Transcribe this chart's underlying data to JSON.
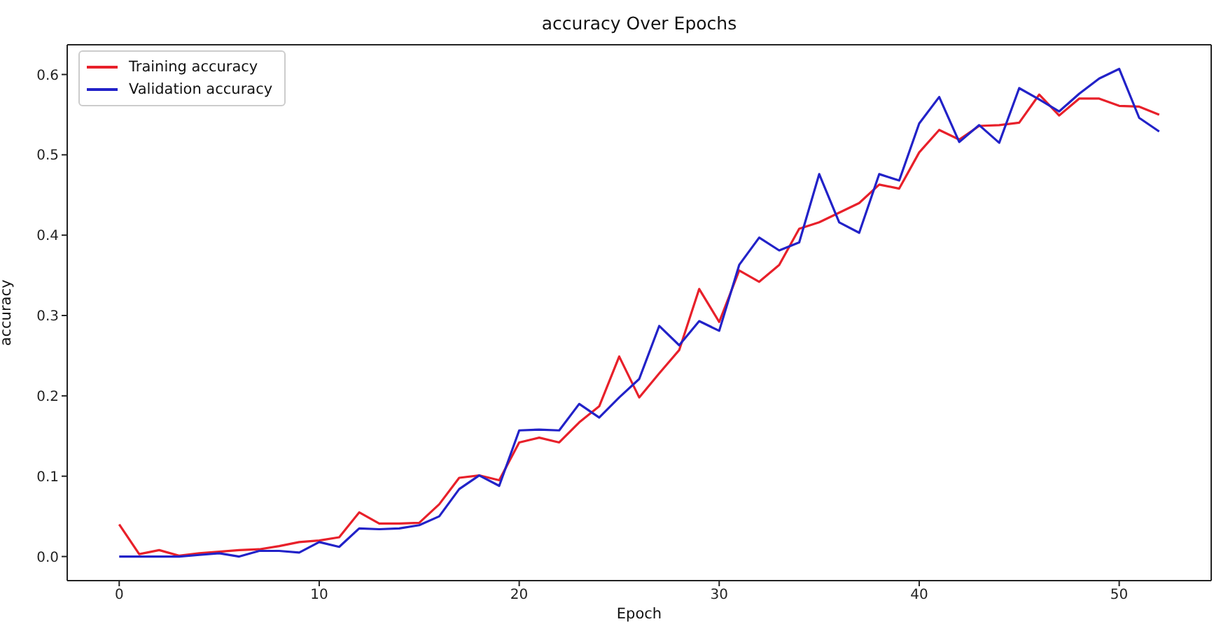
{
  "chart_data": {
    "type": "line",
    "title": "accuracy Over Epochs",
    "xlabel": "Epoch",
    "ylabel": "accuracy",
    "x": [
      0,
      1,
      2,
      3,
      4,
      5,
      6,
      7,
      8,
      9,
      10,
      11,
      12,
      13,
      14,
      15,
      16,
      17,
      18,
      19,
      20,
      21,
      22,
      23,
      24,
      25,
      26,
      27,
      28,
      29,
      30,
      31,
      32,
      33,
      34,
      35,
      36,
      37,
      38,
      39,
      40,
      41,
      42,
      43,
      44,
      45,
      46,
      47,
      48,
      49,
      50,
      51,
      52
    ],
    "series": [
      {
        "name": "Training accuracy",
        "color": "#e8202a",
        "values": [
          0.04,
          0.003,
          0.008,
          0.001,
          0.004,
          0.006,
          0.008,
          0.009,
          0.013,
          0.018,
          0.02,
          0.024,
          0.055,
          0.041,
          0.041,
          0.042,
          0.065,
          0.098,
          0.101,
          0.095,
          0.142,
          0.148,
          0.142,
          0.167,
          0.187,
          0.249,
          0.198,
          0.228,
          0.257,
          0.333,
          0.292,
          0.356,
          0.342,
          0.363,
          0.408,
          0.416,
          0.428,
          0.44,
          0.463,
          0.458,
          0.503,
          0.531,
          0.519,
          0.536,
          0.537,
          0.54,
          0.575,
          0.549,
          0.57,
          0.57,
          0.561,
          0.56,
          0.55
        ]
      },
      {
        "name": "Validation accuracy",
        "color": "#2222c8",
        "values": [
          0,
          0,
          0,
          0,
          0.002,
          0.004,
          0,
          0.007,
          0.007,
          0.005,
          0.018,
          0.012,
          0.035,
          0.034,
          0.035,
          0.039,
          0.05,
          0.084,
          0.101,
          0.088,
          0.157,
          0.158,
          0.157,
          0.19,
          0.173,
          0.198,
          0.221,
          0.287,
          0.263,
          0.293,
          0.281,
          0.363,
          0.397,
          0.381,
          0.391,
          0.476,
          0.416,
          0.403,
          0.476,
          0.468,
          0.539,
          0.572,
          0.516,
          0.537,
          0.515,
          0.583,
          0.569,
          0.554,
          0.576,
          0.595,
          0.607,
          0.546,
          0.529
        ]
      }
    ],
    "xlim": [
      -2.6,
      54.6
    ],
    "xticks": [
      0,
      10,
      20,
      30,
      40,
      50
    ],
    "ylim": [
      -0.03,
      0.637
    ],
    "yticks": [
      {
        "value": 0,
        "label": "0.0"
      },
      0.1,
      0.2,
      0.3,
      0.4,
      0.5,
      0.6
    ],
    "grid": false,
    "legend": "top left",
    "marker": "none",
    "line_style": "solid"
  }
}
